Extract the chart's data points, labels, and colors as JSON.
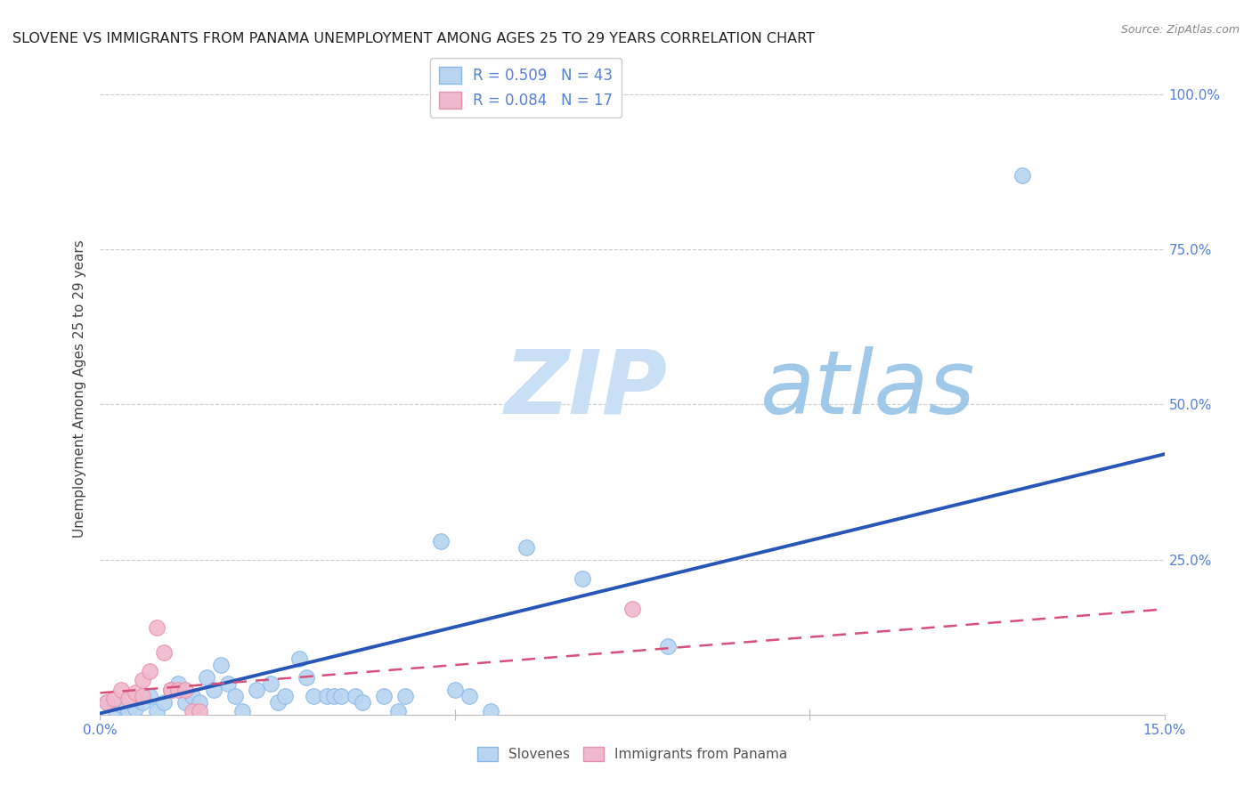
{
  "title": "SLOVENE VS IMMIGRANTS FROM PANAMA UNEMPLOYMENT AMONG AGES 25 TO 29 YEARS CORRELATION CHART",
  "source": "Source: ZipAtlas.com",
  "ylabel": "Unemployment Among Ages 25 to 29 years",
  "xlim": [
    0.0,
    0.15
  ],
  "ylim": [
    0.0,
    1.05
  ],
  "yticks": [
    0.0,
    0.25,
    0.5,
    0.75,
    1.0
  ],
  "xticks": [
    0.0,
    0.05,
    0.1,
    0.15
  ],
  "xtick_labels": [
    "0.0%",
    "",
    "",
    "15.0%"
  ],
  "right_ytick_labels": [
    "",
    "25.0%",
    "50.0%",
    "75.0%",
    "100.0%"
  ],
  "legend_line1": "R = 0.509   N = 43",
  "legend_line2": "R = 0.084   N = 17",
  "slovenes_scatter": [
    [
      0.001,
      0.02
    ],
    [
      0.002,
      0.01
    ],
    [
      0.003,
      0.015
    ],
    [
      0.004,
      0.005
    ],
    [
      0.005,
      0.01
    ],
    [
      0.006,
      0.02
    ],
    [
      0.007,
      0.03
    ],
    [
      0.008,
      0.005
    ],
    [
      0.009,
      0.02
    ],
    [
      0.01,
      0.04
    ],
    [
      0.011,
      0.05
    ],
    [
      0.012,
      0.02
    ],
    [
      0.013,
      0.03
    ],
    [
      0.014,
      0.02
    ],
    [
      0.015,
      0.06
    ],
    [
      0.016,
      0.04
    ],
    [
      0.017,
      0.08
    ],
    [
      0.018,
      0.05
    ],
    [
      0.019,
      0.03
    ],
    [
      0.02,
      0.005
    ],
    [
      0.022,
      0.04
    ],
    [
      0.024,
      0.05
    ],
    [
      0.025,
      0.02
    ],
    [
      0.026,
      0.03
    ],
    [
      0.028,
      0.09
    ],
    [
      0.029,
      0.06
    ],
    [
      0.03,
      0.03
    ],
    [
      0.032,
      0.03
    ],
    [
      0.033,
      0.03
    ],
    [
      0.034,
      0.03
    ],
    [
      0.036,
      0.03
    ],
    [
      0.037,
      0.02
    ],
    [
      0.04,
      0.03
    ],
    [
      0.042,
      0.005
    ],
    [
      0.043,
      0.03
    ],
    [
      0.048,
      0.28
    ],
    [
      0.05,
      0.04
    ],
    [
      0.052,
      0.03
    ],
    [
      0.055,
      0.005
    ],
    [
      0.06,
      0.27
    ],
    [
      0.068,
      0.22
    ],
    [
      0.08,
      0.11
    ],
    [
      0.13,
      0.87
    ]
  ],
  "panama_scatter": [
    [
      0.001,
      0.02
    ],
    [
      0.002,
      0.025
    ],
    [
      0.003,
      0.04
    ],
    [
      0.004,
      0.025
    ],
    [
      0.005,
      0.035
    ],
    [
      0.006,
      0.03
    ],
    [
      0.006,
      0.055
    ],
    [
      0.007,
      0.07
    ],
    [
      0.008,
      0.14
    ],
    [
      0.009,
      0.1
    ],
    [
      0.01,
      0.04
    ],
    [
      0.01,
      0.04
    ],
    [
      0.011,
      0.04
    ],
    [
      0.012,
      0.04
    ],
    [
      0.013,
      0.005
    ],
    [
      0.014,
      0.005
    ],
    [
      0.075,
      0.17
    ]
  ],
  "slovenes_line": [
    [
      0.0,
      0.002
    ],
    [
      0.15,
      0.42
    ]
  ],
  "panama_line": [
    [
      0.0,
      0.035
    ],
    [
      0.15,
      0.17
    ]
  ],
  "scatter_color_slovenes": "#b8d4f0",
  "scatter_edge_slovenes": "#88b8e8",
  "scatter_color_panama": "#f0b8cc",
  "scatter_edge_panama": "#e890b0",
  "line_color_slovenes": "#2855b8",
  "line_color_panama": "#d8507a",
  "background_color": "#ffffff",
  "grid_color": "#cccccc",
  "tick_color": "#5580d8",
  "title_fontsize": 11.5,
  "watermark_zip_color": "#c8dff5",
  "watermark_atlas_color": "#a0c8e8"
}
